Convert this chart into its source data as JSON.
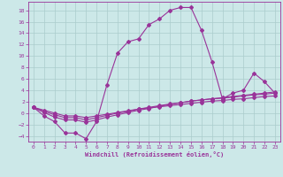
{
  "xlabel": "Windchill (Refroidissement éolien,°C)",
  "background_color": "#cce8e8",
  "grid_color": "#aacccc",
  "line_color": "#993399",
  "xlim": [
    -0.5,
    23.5
  ],
  "ylim": [
    -5,
    19.5
  ],
  "xticks": [
    0,
    1,
    2,
    3,
    4,
    5,
    6,
    7,
    8,
    9,
    10,
    11,
    12,
    13,
    14,
    15,
    16,
    17,
    18,
    19,
    20,
    21,
    22,
    23
  ],
  "yticks": [
    -4,
    -2,
    0,
    2,
    4,
    6,
    8,
    10,
    12,
    14,
    16,
    18
  ],
  "curve1_y": [
    1.0,
    -0.5,
    -1.5,
    -3.5,
    -3.5,
    -4.5,
    -1.5,
    5.0,
    10.5,
    12.5,
    13.0,
    15.5,
    16.5,
    18.0,
    18.5,
    18.5,
    14.5,
    9.0,
    2.5,
    3.5,
    4.0,
    7.0,
    5.5,
    3.5
  ],
  "curve2_y": [
    1.0,
    0.5,
    0.0,
    -0.5,
    -0.5,
    -0.8,
    -0.5,
    -0.2,
    0.1,
    0.4,
    0.7,
    0.9,
    1.1,
    1.3,
    1.5,
    1.7,
    1.9,
    2.1,
    2.2,
    2.4,
    2.5,
    2.7,
    2.9,
    3.0
  ],
  "curve3_y": [
    1.0,
    0.3,
    -0.3,
    -0.8,
    -0.8,
    -1.2,
    -0.8,
    -0.4,
    0.0,
    0.3,
    0.7,
    1.0,
    1.3,
    1.6,
    1.8,
    2.1,
    2.3,
    2.5,
    2.6,
    2.8,
    3.0,
    3.2,
    3.3,
    3.5
  ],
  "curve4_y": [
    1.0,
    0.1,
    -0.7,
    -1.2,
    -1.2,
    -1.6,
    -1.2,
    -0.7,
    -0.3,
    0.1,
    0.5,
    0.8,
    1.2,
    1.5,
    1.8,
    2.1,
    2.3,
    2.5,
    2.7,
    2.9,
    3.1,
    3.3,
    3.5,
    3.7
  ]
}
